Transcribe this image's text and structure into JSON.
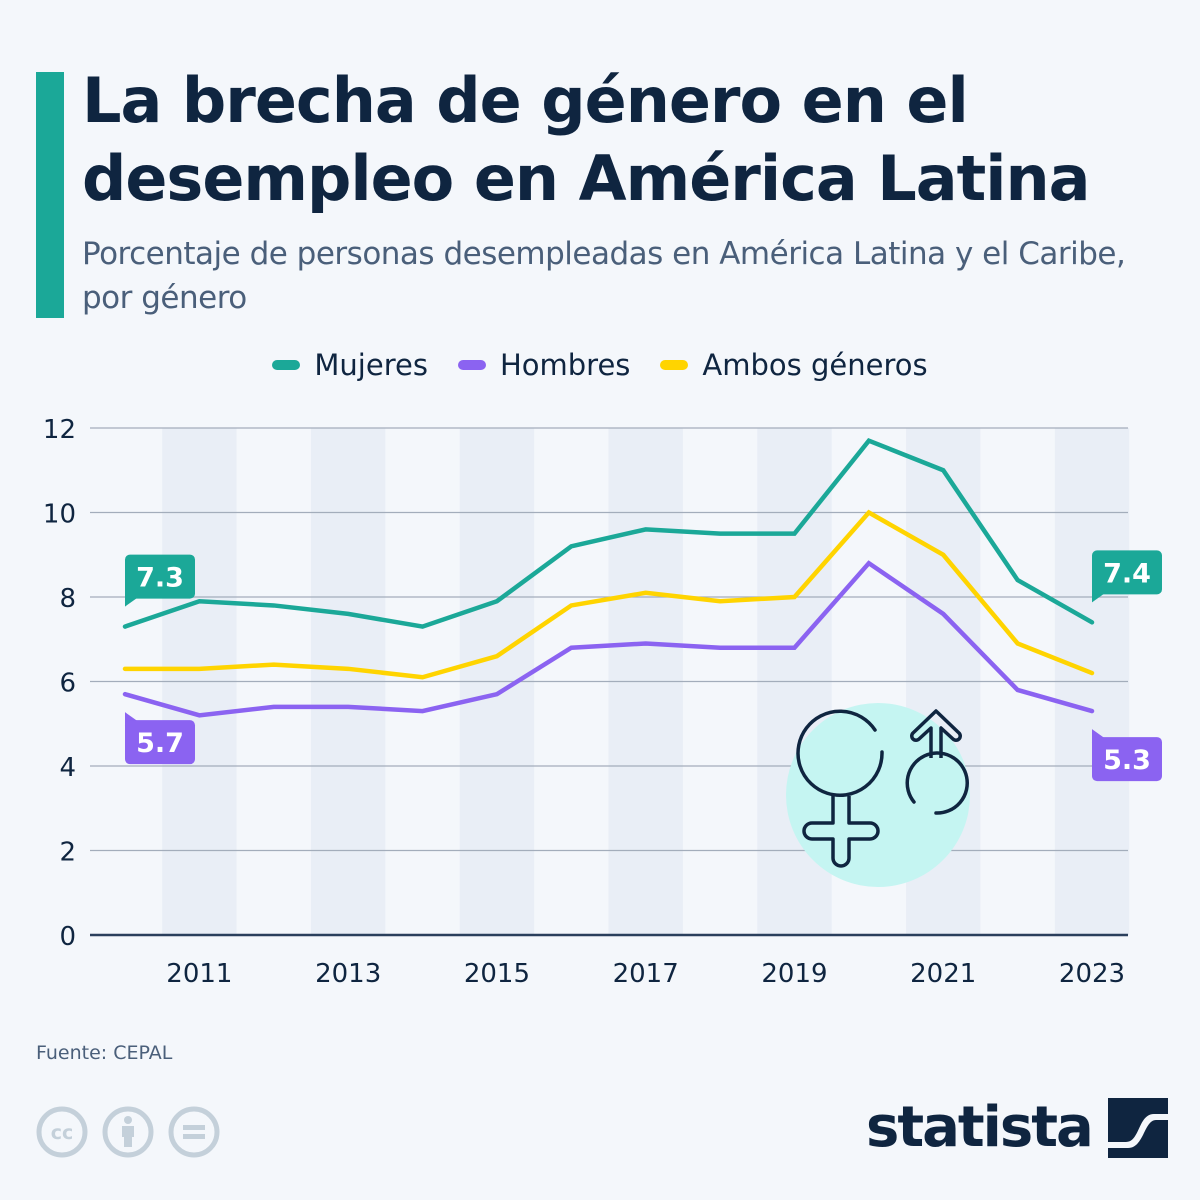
{
  "header": {
    "title": "La brecha de género en el desempleo en América Latina",
    "subtitle": "Porcentaje de personas desempleadas en América Latina y el Caribe, por género"
  },
  "footer": {
    "source": "Fuente: CEPAL",
    "brand": "statista",
    "license_icons": [
      "cc-icon",
      "attribution-icon",
      "no-derivatives-icon"
    ]
  },
  "illustration": {
    "icon": "gender-symbols-icon",
    "circle_color": "#c5f5f2"
  },
  "chart_data": {
    "type": "line",
    "title": "La brecha de género en el desempleo en América Latina",
    "subtitle": "Porcentaje de personas desempleadas en América Latina y el Caribe, por género",
    "xlabel": "",
    "ylabel": "",
    "x": [
      2010,
      2011,
      2012,
      2013,
      2014,
      2015,
      2016,
      2017,
      2018,
      2019,
      2020,
      2021,
      2022,
      2023
    ],
    "x_tick_labels": [
      "2011",
      "2013",
      "2015",
      "2017",
      "2019",
      "2021",
      "2023"
    ],
    "y_ticks": [
      0,
      2,
      4,
      6,
      8,
      10,
      12
    ],
    "ylim": [
      0,
      12
    ],
    "grid": true,
    "legend_position": "top-center",
    "series": [
      {
        "name": "Mujeres",
        "color": "#1ba898",
        "values": [
          7.3,
          7.9,
          7.8,
          7.6,
          7.3,
          7.9,
          9.2,
          9.6,
          9.5,
          9.5,
          11.7,
          11.0,
          8.4,
          7.4
        ],
        "labels": [
          {
            "x": 2010,
            "text": "7.3",
            "pos": "above"
          },
          {
            "x": 2023,
            "text": "7.4",
            "pos": "above"
          }
        ]
      },
      {
        "name": "Hombres",
        "color": "#8b63f1",
        "values": [
          5.7,
          5.2,
          5.4,
          5.4,
          5.3,
          5.7,
          6.8,
          6.9,
          6.8,
          6.8,
          8.8,
          7.6,
          5.8,
          5.3
        ],
        "labels": [
          {
            "x": 2010,
            "text": "5.7",
            "pos": "below"
          },
          {
            "x": 2023,
            "text": "5.3",
            "pos": "below"
          }
        ]
      },
      {
        "name": "Ambos géneros",
        "color": "#ffd400",
        "values": [
          6.3,
          6.3,
          6.4,
          6.3,
          6.1,
          6.6,
          7.8,
          8.1,
          7.9,
          8.0,
          10.0,
          9.0,
          6.9,
          6.2
        ],
        "labels": []
      }
    ]
  }
}
